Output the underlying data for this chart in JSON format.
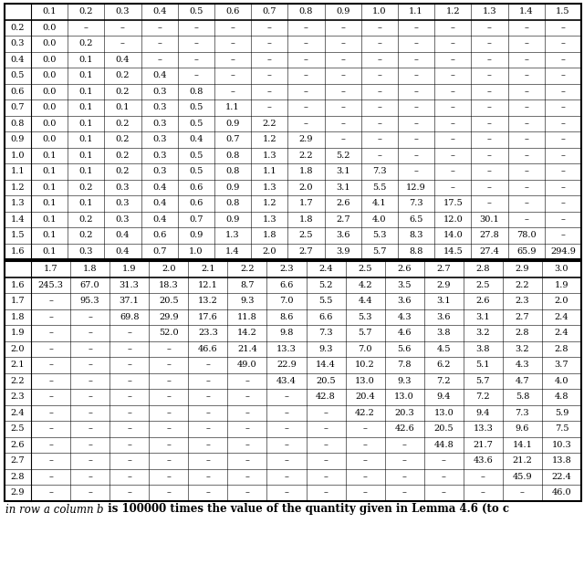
{
  "top_col_headers": [
    "0.1",
    "0.2",
    "0.3",
    "0.4",
    "0.5",
    "0.6",
    "0.7",
    "0.8",
    "0.9",
    "1.0",
    "1.1",
    "1.2",
    "1.3",
    "1.4",
    "1.5"
  ],
  "top_row_headers": [
    "0.2",
    "0.3",
    "0.4",
    "0.5",
    "0.6",
    "0.7",
    "0.8",
    "0.9",
    "1.0",
    "1.1",
    "1.2",
    "1.3",
    "1.4",
    "1.5",
    "1.6"
  ],
  "top_data": [
    [
      "0.0",
      "–",
      "–",
      "–",
      "–",
      "–",
      "–",
      "–",
      "–",
      "–",
      "–",
      "–",
      "–",
      "–",
      "–"
    ],
    [
      "0.0",
      "0.2",
      "–",
      "–",
      "–",
      "–",
      "–",
      "–",
      "–",
      "–",
      "–",
      "–",
      "–",
      "–",
      "–"
    ],
    [
      "0.0",
      "0.1",
      "0.4",
      "–",
      "–",
      "–",
      "–",
      "–",
      "–",
      "–",
      "–",
      "–",
      "–",
      "–",
      "–"
    ],
    [
      "0.0",
      "0.1",
      "0.2",
      "0.4",
      "–",
      "–",
      "–",
      "–",
      "–",
      "–",
      "–",
      "–",
      "–",
      "–",
      "–"
    ],
    [
      "0.0",
      "0.1",
      "0.2",
      "0.3",
      "0.8",
      "–",
      "–",
      "–",
      "–",
      "–",
      "–",
      "–",
      "–",
      "–",
      "–"
    ],
    [
      "0.0",
      "0.1",
      "0.1",
      "0.3",
      "0.5",
      "1.1",
      "–",
      "–",
      "–",
      "–",
      "–",
      "–",
      "–",
      "–",
      "–"
    ],
    [
      "0.0",
      "0.1",
      "0.2",
      "0.3",
      "0.5",
      "0.9",
      "2.2",
      "–",
      "–",
      "–",
      "–",
      "–",
      "–",
      "–",
      "–"
    ],
    [
      "0.0",
      "0.1",
      "0.2",
      "0.3",
      "0.4",
      "0.7",
      "1.2",
      "2.9",
      "–",
      "–",
      "–",
      "–",
      "–",
      "–",
      "–"
    ],
    [
      "0.1",
      "0.1",
      "0.2",
      "0.3",
      "0.5",
      "0.8",
      "1.3",
      "2.2",
      "5.2",
      "–",
      "–",
      "–",
      "–",
      "–",
      "–"
    ],
    [
      "0.1",
      "0.1",
      "0.2",
      "0.3",
      "0.5",
      "0.8",
      "1.1",
      "1.8",
      "3.1",
      "7.3",
      "–",
      "–",
      "–",
      "–",
      "–"
    ],
    [
      "0.1",
      "0.2",
      "0.3",
      "0.4",
      "0.6",
      "0.9",
      "1.3",
      "2.0",
      "3.1",
      "5.5",
      "12.9",
      "–",
      "–",
      "–",
      "–"
    ],
    [
      "0.1",
      "0.1",
      "0.3",
      "0.4",
      "0.6",
      "0.8",
      "1.2",
      "1.7",
      "2.6",
      "4.1",
      "7.3",
      "17.5",
      "–",
      "–",
      "–"
    ],
    [
      "0.1",
      "0.2",
      "0.3",
      "0.4",
      "0.7",
      "0.9",
      "1.3",
      "1.8",
      "2.7",
      "4.0",
      "6.5",
      "12.0",
      "30.1",
      "–",
      "–"
    ],
    [
      "0.1",
      "0.2",
      "0.4",
      "0.6",
      "0.9",
      "1.3",
      "1.8",
      "2.5",
      "3.6",
      "5.3",
      "8.3",
      "14.0",
      "27.8",
      "78.0",
      "–"
    ],
    [
      "0.1",
      "0.3",
      "0.4",
      "0.7",
      "1.0",
      "1.4",
      "2.0",
      "2.7",
      "3.9",
      "5.7",
      "8.8",
      "14.5",
      "27.4",
      "65.9",
      "294.9"
    ]
  ],
  "bot_col_headers": [
    "1.7",
    "1.8",
    "1.9",
    "2.0",
    "2.1",
    "2.2",
    "2.3",
    "2.4",
    "2.5",
    "2.6",
    "2.7",
    "2.8",
    "2.9",
    "3.0"
  ],
  "bot_row_headers": [
    "1.6",
    "1.7",
    "1.8",
    "1.9",
    "2.0",
    "2.1",
    "2.2",
    "2.3",
    "2.4",
    "2.5",
    "2.6",
    "2.7",
    "2.8",
    "2.9"
  ],
  "bot_data": [
    [
      "245.3",
      "67.0",
      "31.3",
      "18.3",
      "12.1",
      "8.7",
      "6.6",
      "5.2",
      "4.2",
      "3.5",
      "2.9",
      "2.5",
      "2.2",
      "1.9"
    ],
    [
      "–",
      "95.3",
      "37.1",
      "20.5",
      "13.2",
      "9.3",
      "7.0",
      "5.5",
      "4.4",
      "3.6",
      "3.1",
      "2.6",
      "2.3",
      "2.0"
    ],
    [
      "–",
      "–",
      "69.8",
      "29.9",
      "17.6",
      "11.8",
      "8.6",
      "6.6",
      "5.3",
      "4.3",
      "3.6",
      "3.1",
      "2.7",
      "2.4"
    ],
    [
      "–",
      "–",
      "–",
      "52.0",
      "23.3",
      "14.2",
      "9.8",
      "7.3",
      "5.7",
      "4.6",
      "3.8",
      "3.2",
      "2.8",
      "2.4"
    ],
    [
      "–",
      "–",
      "–",
      "–",
      "46.6",
      "21.4",
      "13.3",
      "9.3",
      "7.0",
      "5.6",
      "4.5",
      "3.8",
      "3.2",
      "2.8"
    ],
    [
      "–",
      "–",
      "–",
      "–",
      "–",
      "49.0",
      "22.9",
      "14.4",
      "10.2",
      "7.8",
      "6.2",
      "5.1",
      "4.3",
      "3.7"
    ],
    [
      "–",
      "–",
      "–",
      "–",
      "–",
      "–",
      "43.4",
      "20.5",
      "13.0",
      "9.3",
      "7.2",
      "5.7",
      "4.7",
      "4.0"
    ],
    [
      "–",
      "–",
      "–",
      "–",
      "–",
      "–",
      "–",
      "42.8",
      "20.4",
      "13.0",
      "9.4",
      "7.2",
      "5.8",
      "4.8"
    ],
    [
      "–",
      "–",
      "–",
      "–",
      "–",
      "–",
      "–",
      "–",
      "42.2",
      "20.3",
      "13.0",
      "9.4",
      "7.3",
      "5.9"
    ],
    [
      "–",
      "–",
      "–",
      "–",
      "–",
      "–",
      "–",
      "–",
      "–",
      "42.6",
      "20.5",
      "13.3",
      "9.6",
      "7.5"
    ],
    [
      "–",
      "–",
      "–",
      "–",
      "–",
      "–",
      "–",
      "–",
      "–",
      "–",
      "44.8",
      "21.7",
      "14.1",
      "10.3"
    ],
    [
      "–",
      "–",
      "–",
      "–",
      "–",
      "–",
      "–",
      "–",
      "–",
      "–",
      "–",
      "43.6",
      "21.2",
      "13.8"
    ],
    [
      "–",
      "–",
      "–",
      "–",
      "–",
      "–",
      "–",
      "–",
      "–",
      "–",
      "–",
      "–",
      "45.9",
      "22.4"
    ],
    [
      "–",
      "–",
      "–",
      "–",
      "–",
      "–",
      "–",
      "–",
      "–",
      "–",
      "–",
      "–",
      "–",
      "46.0"
    ]
  ],
  "bg_color": "#ffffff",
  "cell_fontsize": 7.0,
  "header_fontsize": 7.0,
  "footnote_fontsize": 8.5
}
